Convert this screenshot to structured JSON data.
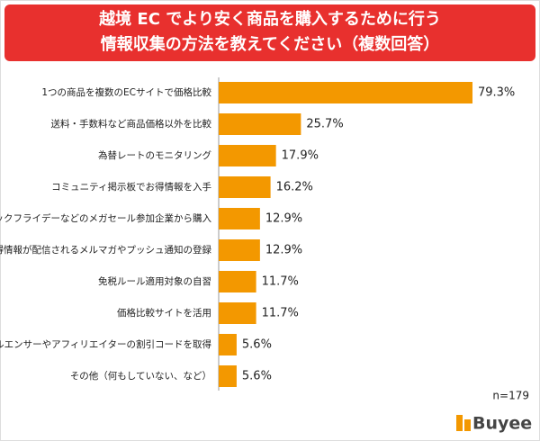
{
  "chart_data": {
    "type": "hbar",
    "title": [
      "越境 EC でより安く商品を購入するために行う",
      "情報収集の方法を教えてください（複数回答）"
    ],
    "categories": [
      "1つの商品を複数のECサイトで価格比較",
      "送料・手数料など商品価格以外を比較",
      "為替レートのモニタリング",
      "コミュニティ掲示板でお得情報を入手",
      "ブラックフライデーなどのメガセール参加企業から購入",
      "お得情報が配信されるメルマガやプッシュ通知の登録",
      "免税ルール適用対象の自習",
      "価格比較サイトを活用",
      "インフルエンサーやアフィリエイターの割引コードを取得",
      "その他（何もしていない、など）"
    ],
    "values": [
      79.3,
      25.7,
      17.9,
      16.2,
      12.9,
      12.9,
      11.7,
      11.7,
      5.6,
      5.6
    ],
    "value_labels": [
      "79.3%",
      "25.7%",
      "17.9%",
      "16.2%",
      "12.9%",
      "12.9%",
      "11.7%",
      "11.7%",
      "5.6%",
      "5.6%"
    ],
    "color": "#f39800",
    "note": "n=179",
    "logo": "Buyee"
  }
}
